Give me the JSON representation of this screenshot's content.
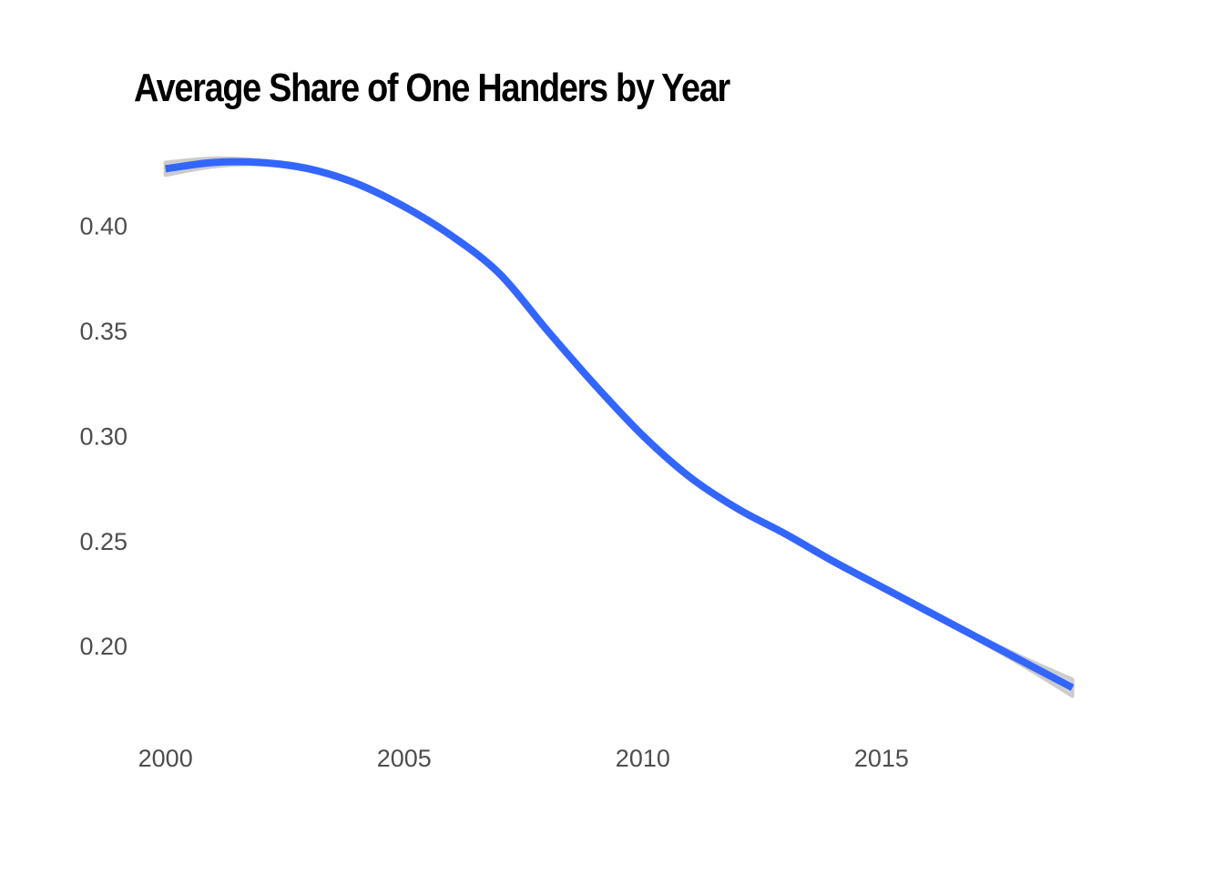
{
  "chart_data": {
    "type": "line",
    "title": "Average Share of One Handers by Year",
    "xlabel": "",
    "ylabel": "",
    "x_ticks": [
      "2000",
      "2005",
      "2010",
      "2015"
    ],
    "y_ticks": [
      "0.20",
      "0.25",
      "0.30",
      "0.35",
      "0.40"
    ],
    "xlim": [
      1999.3,
      2020
    ],
    "ylim": [
      0.165,
      0.438
    ],
    "grid": false,
    "legend": "none",
    "series": [
      {
        "style": "smoothed",
        "color": "#3366ff",
        "band_color": "#cccccc",
        "x": [
          2000,
          2001,
          2002,
          2003,
          2004,
          2005,
          2006,
          2007,
          2008,
          2009,
          2010,
          2011,
          2012,
          2013,
          2014,
          2015,
          2016,
          2017,
          2018,
          2019
        ],
        "y": [
          0.427,
          0.43,
          0.43,
          0.427,
          0.42,
          0.409,
          0.395,
          0.377,
          0.35,
          0.324,
          0.3,
          0.28,
          0.265,
          0.253,
          0.24,
          0.228,
          0.216,
          0.204,
          0.192,
          0.18
        ],
        "lower": [
          0.424,
          0.428,
          0.429,
          0.426,
          0.419,
          0.408,
          0.394,
          0.376,
          0.349,
          0.323,
          0.299,
          0.279,
          0.264,
          0.252,
          0.239,
          0.227,
          0.215,
          0.203,
          0.19,
          0.176
        ],
        "upper": [
          0.43,
          0.432,
          0.431,
          0.428,
          0.421,
          0.41,
          0.396,
          0.378,
          0.351,
          0.325,
          0.301,
          0.281,
          0.266,
          0.254,
          0.241,
          0.229,
          0.217,
          0.205,
          0.194,
          0.184
        ]
      }
    ]
  }
}
